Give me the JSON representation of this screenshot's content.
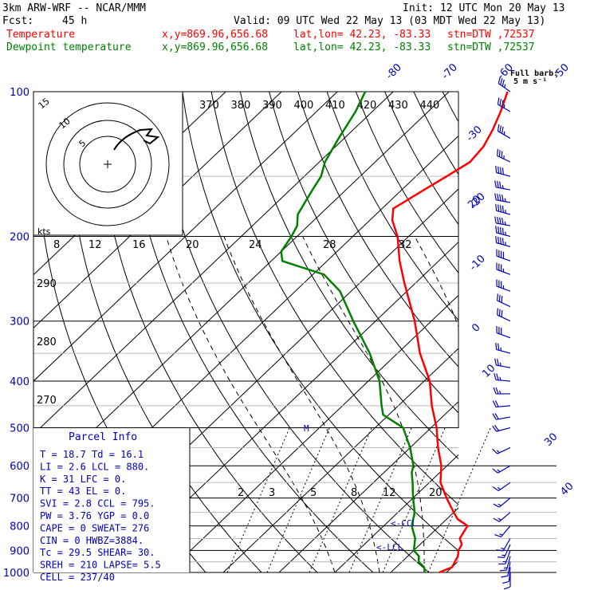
{
  "header": {
    "model": "3km ARW-WRF -- NCAR/MMM",
    "init": "Init: 12 UTC Mon 20 May 13",
    "fcst_label": "Fcst:",
    "fcst_value": "45 h",
    "valid": "Valid: 09 UTC Wed 22 May 13 (03 MDT Wed 22 May 13)",
    "temp_label": "Temperature",
    "dew_label": "Dewpoint temperature",
    "xy": "x,y=869.96,656.68",
    "latlon": "lat,lon= 42.23, -83.33",
    "stn": "stn=DTW ,72537",
    "full_barb_1": "Full barb:",
    "full_barb_2": "5 m s⁻¹",
    "temp_color": "#ff0000",
    "dew_color": "#008000",
    "axis_color": "#0000bb"
  },
  "parcel_info": {
    "title": "Parcel Info",
    "rows": [
      "T  =   18.7  Td =  16.1",
      "LI =    2.6  LCL = 880.",
      "K  =     31  LFC =   0.",
      "TT =     43  EL  =   0.",
      "SVI =   2.8  CCL = 795.",
      "PW =   3.76  YGP =  0.0",
      "CAPE =    0  SWEAT= 276",
      "CIN =     0  HWBZ=3884.",
      "Tc =   29.5  SHEAR= 30.",
      "SREH =  210  LAPSE= 5.5",
      "CELL = 237/40"
    ]
  },
  "hodograph": {
    "unit": "kts",
    "ring_labels": [
      "5",
      "10",
      "15"
    ]
  },
  "annotations": {
    "ccl": "<-CCL",
    "lcl": "<-LCL",
    "m": "M"
  },
  "chart_data": {
    "type": "line",
    "title": "Skew-T log-P sounding, DTW 72537",
    "pressure_levels": [
      100,
      200,
      300,
      400,
      500,
      600,
      700,
      800,
      900,
      1000
    ],
    "temperature_ticks": [
      -80,
      -70,
      -60,
      -50,
      -40,
      -30,
      -20,
      -10,
      0,
      10,
      20,
      30,
      40
    ],
    "theta_labels": [
      370,
      380,
      390,
      400,
      410,
      420,
      430,
      440
    ],
    "theta_left_labels": [
      290,
      280,
      270
    ],
    "mixing_ratio_labels": [
      2,
      3,
      5,
      8,
      12,
      20
    ],
    "hodograph_speed_labels": [
      8,
      12,
      16,
      20,
      24,
      28,
      32
    ],
    "series": [
      {
        "name": "Temperature",
        "color": "#ff0000",
        "points": [
          [
            1000,
            18.7
          ],
          [
            975,
            20.0
          ],
          [
            950,
            19.5
          ],
          [
            925,
            19.0
          ],
          [
            900,
            18.0
          ],
          [
            875,
            17.5
          ],
          [
            850,
            16.0
          ],
          [
            825,
            15.5
          ],
          [
            800,
            15.0
          ],
          [
            775,
            12.0
          ],
          [
            750,
            10.0
          ],
          [
            700,
            6.0
          ],
          [
            650,
            2.0
          ],
          [
            600,
            -1.0
          ],
          [
            550,
            -5.0
          ],
          [
            500,
            -9.0
          ],
          [
            450,
            -14.0
          ],
          [
            400,
            -19.0
          ],
          [
            350,
            -26.0
          ],
          [
            300,
            -33.0
          ],
          [
            250,
            -42.0
          ],
          [
            225,
            -47.0
          ],
          [
            200,
            -52.0
          ],
          [
            185,
            -56.0
          ],
          [
            175,
            -58.0
          ],
          [
            160,
            -56.0
          ],
          [
            150,
            -54.5
          ],
          [
            140,
            -53.0
          ],
          [
            130,
            -53.5
          ],
          [
            120,
            -55.0
          ],
          [
            110,
            -57.0
          ],
          [
            100,
            -59.5
          ]
        ]
      },
      {
        "name": "Dewpoint temperature",
        "color": "#008000",
        "points": [
          [
            1000,
            16.1
          ],
          [
            975,
            15.0
          ],
          [
            950,
            13.0
          ],
          [
            925,
            12.0
          ],
          [
            900,
            10.0
          ],
          [
            850,
            8.0
          ],
          [
            800,
            5.0
          ],
          [
            750,
            3.0
          ],
          [
            700,
            0.0
          ],
          [
            650,
            -3.0
          ],
          [
            620,
            -5.0
          ],
          [
            600,
            -6.0
          ],
          [
            550,
            -10.0
          ],
          [
            500,
            -15.0
          ],
          [
            470,
            -21.0
          ],
          [
            450,
            -23.0
          ],
          [
            400,
            -28.0
          ],
          [
            350,
            -35.0
          ],
          [
            300,
            -44.0
          ],
          [
            260,
            -52.0
          ],
          [
            240,
            -58.0
          ],
          [
            225,
            -68.0
          ],
          [
            215,
            -70.0
          ],
          [
            200,
            -71.0
          ],
          [
            190,
            -72.0
          ],
          [
            180,
            -74.0
          ],
          [
            160,
            -76.0
          ],
          [
            150,
            -77.0
          ],
          [
            140,
            -79.0
          ],
          [
            125,
            -81.0
          ],
          [
            110,
            -83.0
          ],
          [
            100,
            -85.0
          ]
        ]
      }
    ],
    "wind_barbs": [
      {
        "p": 100,
        "dir": 305,
        "spd": 35
      },
      {
        "p": 110,
        "dir": 300,
        "spd": 35
      },
      {
        "p": 125,
        "dir": 300,
        "spd": 35
      },
      {
        "p": 140,
        "dir": 295,
        "spd": 35
      },
      {
        "p": 150,
        "dir": 285,
        "spd": 40
      },
      {
        "p": 160,
        "dir": 280,
        "spd": 35
      },
      {
        "p": 170,
        "dir": 280,
        "spd": 45
      },
      {
        "p": 180,
        "dir": 285,
        "spd": 45
      },
      {
        "p": 190,
        "dir": 280,
        "spd": 45
      },
      {
        "p": 200,
        "dir": 285,
        "spd": 45
      },
      {
        "p": 210,
        "dir": 285,
        "spd": 45
      },
      {
        "p": 225,
        "dir": 290,
        "spd": 40
      },
      {
        "p": 240,
        "dir": 290,
        "spd": 35
      },
      {
        "p": 260,
        "dir": 290,
        "spd": 35
      },
      {
        "p": 280,
        "dir": 295,
        "spd": 30
      },
      {
        "p": 300,
        "dir": 295,
        "spd": 30
      },
      {
        "p": 325,
        "dir": 290,
        "spd": 30
      },
      {
        "p": 350,
        "dir": 285,
        "spd": 25
      },
      {
        "p": 375,
        "dir": 280,
        "spd": 25
      },
      {
        "p": 400,
        "dir": 275,
        "spd": 25
      },
      {
        "p": 425,
        "dir": 270,
        "spd": 25
      },
      {
        "p": 450,
        "dir": 265,
        "spd": 20
      },
      {
        "p": 475,
        "dir": 260,
        "spd": 20
      },
      {
        "p": 500,
        "dir": 255,
        "spd": 20
      },
      {
        "p": 550,
        "dir": 245,
        "spd": 15
      },
      {
        "p": 600,
        "dir": 240,
        "spd": 15
      },
      {
        "p": 650,
        "dir": 235,
        "spd": 15
      },
      {
        "p": 700,
        "dir": 230,
        "spd": 15
      },
      {
        "p": 750,
        "dir": 230,
        "spd": 15
      },
      {
        "p": 800,
        "dir": 220,
        "spd": 15
      },
      {
        "p": 850,
        "dir": 210,
        "spd": 15
      },
      {
        "p": 875,
        "dir": 205,
        "spd": 15
      },
      {
        "p": 900,
        "dir": 200,
        "spd": 15
      },
      {
        "p": 925,
        "dir": 195,
        "spd": 15
      },
      {
        "p": 950,
        "dir": 190,
        "spd": 10
      },
      {
        "p": 975,
        "dir": 185,
        "spd": 10
      },
      {
        "p": 1000,
        "dir": 180,
        "spd": 10
      }
    ]
  }
}
